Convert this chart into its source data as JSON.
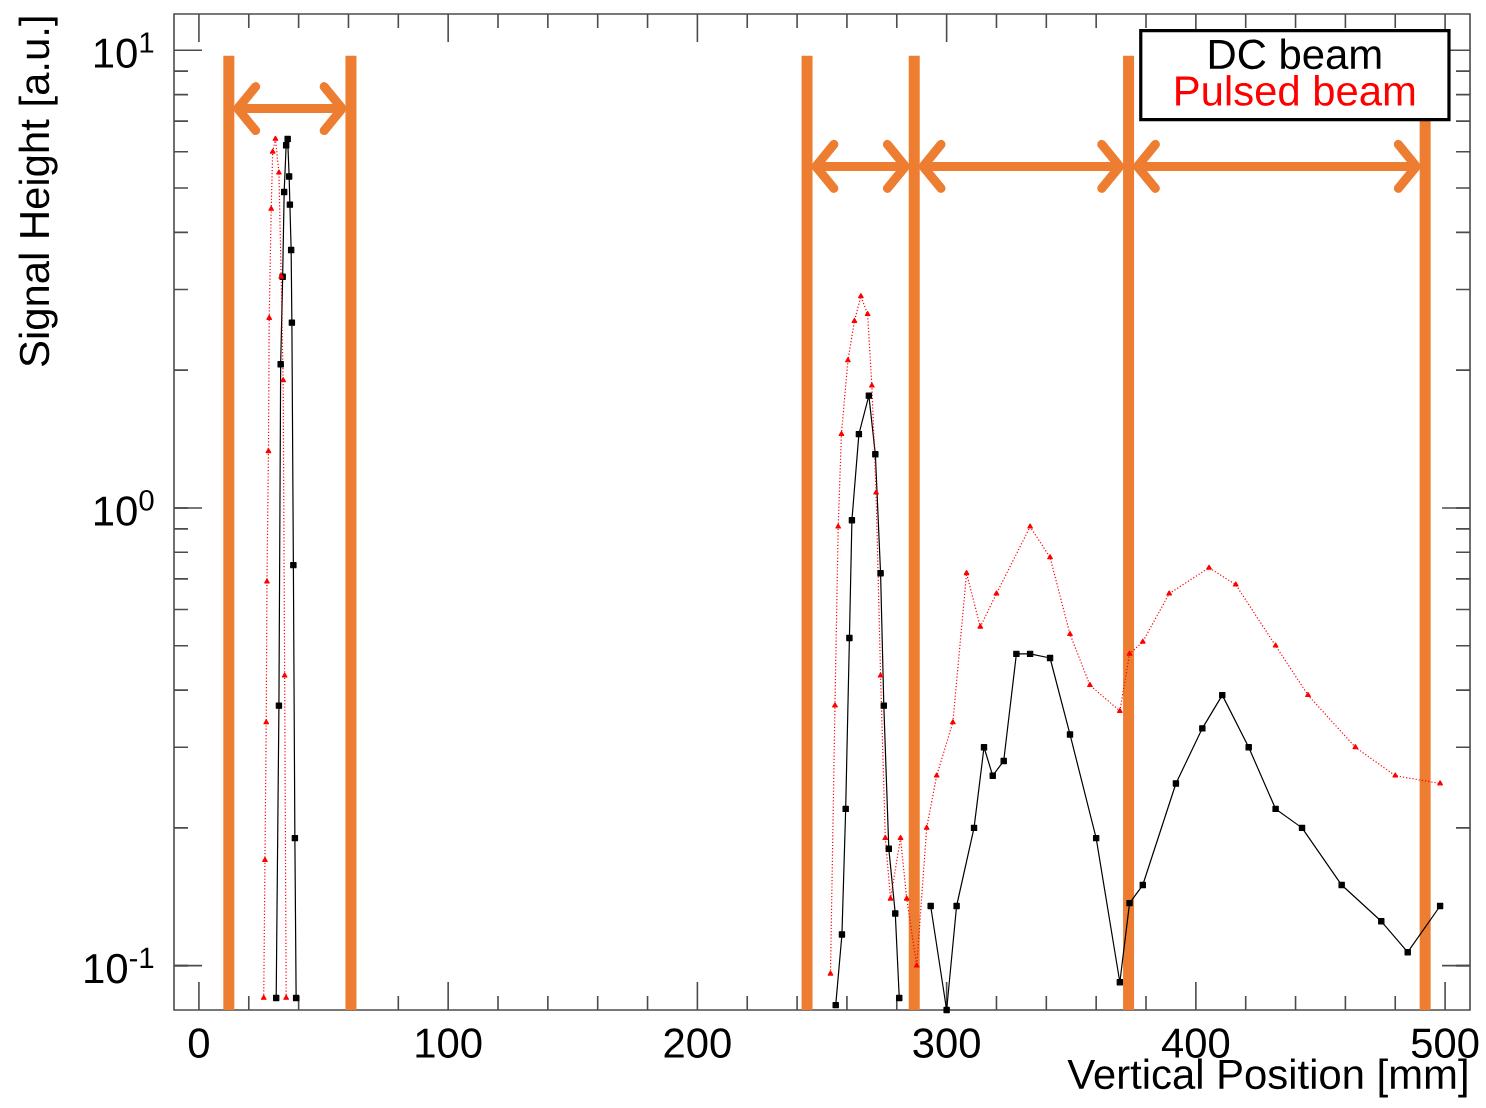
{
  "chart_data": {
    "type": "line",
    "xlabel": "Vertical Position [mm]",
    "ylabel": "Signal Height [a.u.]",
    "log": "y",
    "grid": false,
    "legend": "top right",
    "xlim": [
      -10,
      510
    ],
    "ylim": [
      0.08,
      12
    ],
    "xticks": [
      0,
      100,
      200,
      300,
      400,
      500
    ],
    "yticks": [
      {
        "value": 0.1,
        "label": "10$^{-1}$"
      },
      {
        "value": 1,
        "label": "10$^{0}$"
      },
      {
        "value": 10,
        "label": "10$^{1}$"
      }
    ],
    "ref_lines": [
      {
        "axis": "x",
        "value": 12,
        "color": "#ed7d31"
      },
      {
        "axis": "x",
        "value": 61,
        "color": "#ed7d31"
      },
      {
        "axis": "x",
        "value": 244,
        "color": "#ed7d31"
      },
      {
        "axis": "x",
        "value": 287,
        "color": "#ed7d31"
      },
      {
        "axis": "x",
        "value": 373,
        "color": "#ed7d31"
      },
      {
        "axis": "x",
        "value": 492,
        "color": "#ed7d31"
      }
    ],
    "series": [
      {
        "name": "DC beam",
        "color": "#000000",
        "marker": "square",
        "line_style": "solid",
        "x": [
          31,
          32.1,
          32.8,
          33.6,
          34.2,
          35,
          35.6,
          36.2,
          36.5,
          37,
          37.3,
          37.9,
          38.5,
          39,
          null,
          255.5,
          258,
          259.5,
          261,
          262,
          264.8,
          268.8,
          271.4,
          273.5,
          274.8,
          276.8,
          279.4,
          281,
          null,
          293.6,
          300,
          304,
          311,
          315,
          318.5,
          322.9,
          328,
          333.5,
          341.5,
          349.5,
          360,
          369.5,
          373.4,
          378.7,
          392,
          402.6,
          410.6,
          421.2,
          432,
          442.6,
          458.5,
          474.4,
          485,
          498
        ],
        "values": [
          0.085,
          0.37,
          2.06,
          3.2,
          4.9,
          6.2,
          6.4,
          5.3,
          4.6,
          3.66,
          2.54,
          0.75,
          0.19,
          0.085,
          null,
          0.082,
          0.117,
          0.22,
          0.52,
          0.94,
          1.45,
          1.76,
          1.31,
          0.72,
          0.37,
          0.18,
          0.13,
          0.085,
          null,
          0.135,
          0.08,
          0.135,
          0.2,
          0.3,
          0.26,
          0.28,
          0.48,
          0.48,
          0.47,
          0.32,
          0.19,
          0.092,
          0.137,
          0.15,
          0.25,
          0.33,
          0.39,
          0.3,
          0.22,
          0.2,
          0.15,
          0.125,
          0.107,
          0.135
        ]
      },
      {
        "name": "Pulsed beam",
        "color": "#ff0000",
        "marker": "triangle",
        "line_style": "dotted",
        "x": [
          26,
          26.5,
          27,
          27.3,
          27.9,
          28.2,
          29,
          29.6,
          30.7,
          32.1,
          33,
          33.8,
          34.4,
          35,
          null,
          253.4,
          255.2,
          256.5,
          257.8,
          260.4,
          263,
          265.6,
          268.3,
          270,
          271.7,
          273.5,
          275.4,
          277.5,
          281.5,
          284,
          288,
          292,
          296,
          302.5,
          308,
          313.5,
          320,
          333.5,
          341.5,
          349.5,
          357.5,
          369.5,
          373.4,
          378.7,
          389.3,
          405.3,
          416,
          432,
          445,
          464,
          480,
          498
        ],
        "values": [
          0.085,
          0.17,
          0.34,
          0.69,
          1.33,
          2.6,
          4.5,
          6.0,
          6.4,
          5.4,
          3.2,
          1.9,
          0.43,
          0.085,
          null,
          0.096,
          0.37,
          0.91,
          1.45,
          2.1,
          2.56,
          2.9,
          2.65,
          1.85,
          1.08,
          0.43,
          0.19,
          0.14,
          0.19,
          0.14,
          0.1,
          0.2,
          0.26,
          0.34,
          0.72,
          0.55,
          0.65,
          0.91,
          0.78,
          0.53,
          0.41,
          0.36,
          0.48,
          0.51,
          0.65,
          0.74,
          0.68,
          0.5,
          0.39,
          0.3,
          0.26,
          0.25
        ]
      }
    ]
  }
}
